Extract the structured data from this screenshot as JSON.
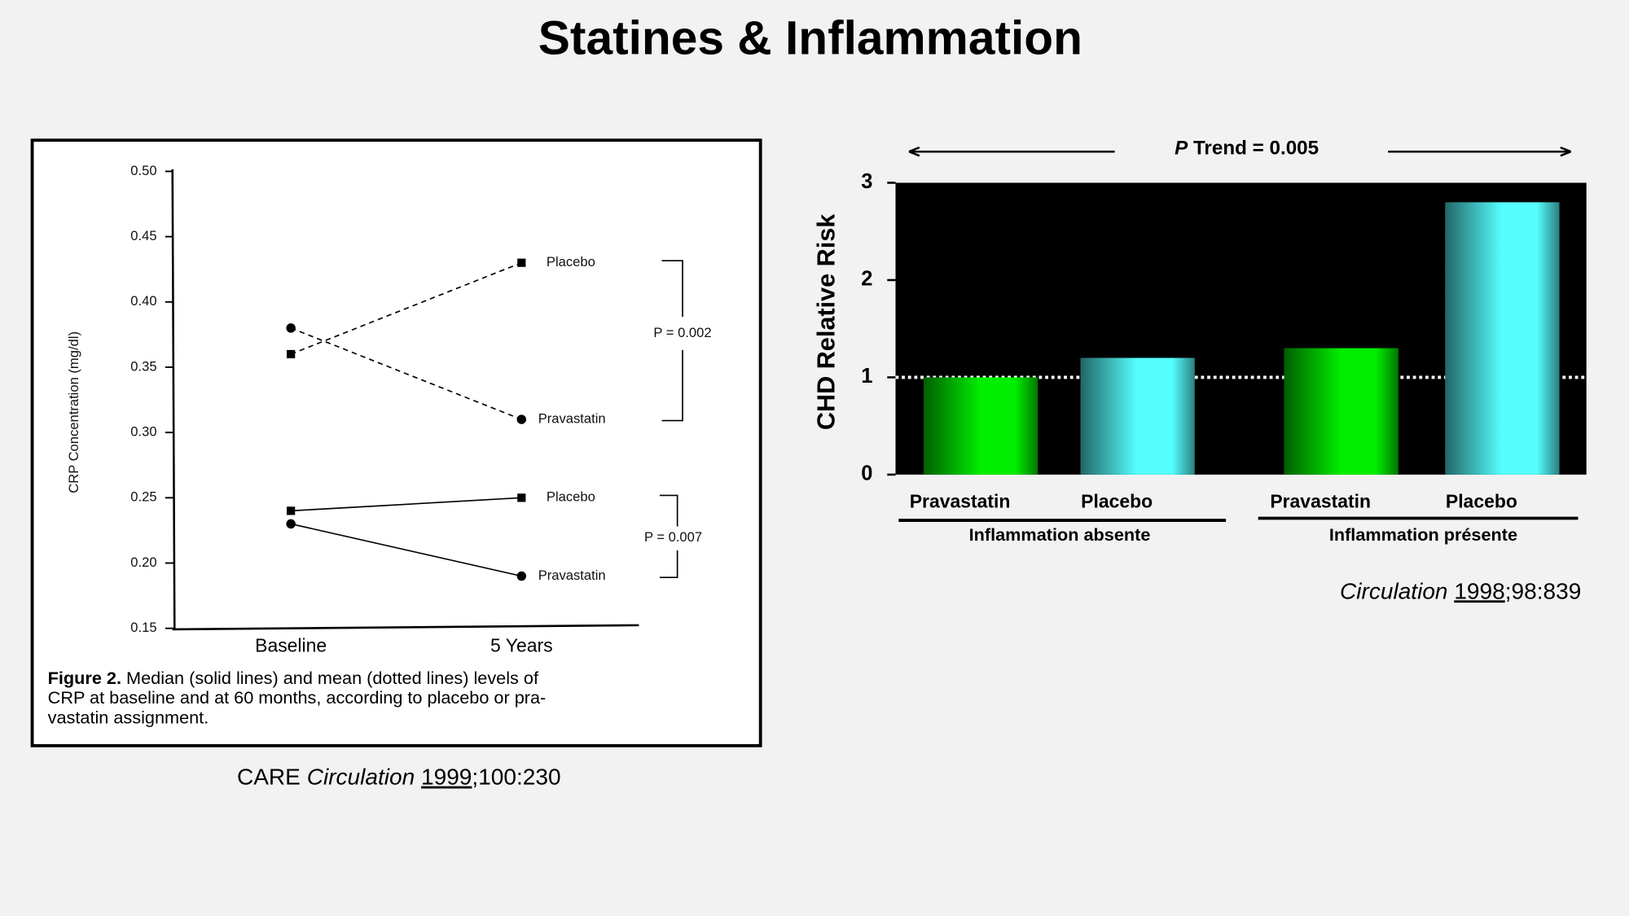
{
  "slide": {
    "title": "Statines & Inflammation"
  },
  "chart_data": [
    {
      "type": "line",
      "ylabel": "CRP Concentration (mg/dl)",
      "categories": [
        "Baseline",
        "5 Years"
      ],
      "ylim": [
        0.15,
        0.5
      ],
      "yticks": [
        0.15,
        {
          "value": 0.2,
          "label": "0.20"
        },
        0.25,
        {
          "value": 0.3,
          "label": "0.30"
        },
        {
          "value": 0.35,
          "label": "0.35"
        },
        {
          "value": 0.4,
          "label": "0.40"
        },
        0.45,
        {
          "value": 0.5,
          "label": "0.50"
        }
      ],
      "series": [
        {
          "name": "Placebo",
          "values": [
            0.36,
            0.43
          ],
          "line_style": "dashed",
          "marker": "square",
          "color": "#000000"
        },
        {
          "name": "Pravastatin",
          "values": [
            0.38,
            0.31
          ],
          "line_style": "dashed",
          "marker": "circle",
          "color": "#000000"
        },
        {
          "name": "Placebo",
          "values": [
            0.24,
            0.25
          ],
          "line_style": "solid",
          "marker": "square",
          "color": "#000000"
        },
        {
          "name": "Pravastatin",
          "values": [
            0.23,
            0.19
          ],
          "line_style": "solid",
          "marker": "circle",
          "color": "#000000"
        }
      ],
      "annotations": [
        "P = 0.002",
        "P = 0.007"
      ],
      "caption": {
        "label": "Figure 2.",
        "lines": [
          "Median (solid lines) and mean (dotted lines) levels of",
          "CRP at baseline and at 60 months, according to placebo or pra-",
          "vastatin assignment."
        ]
      },
      "citation": [
        "CARE",
        "Circulation",
        "1999",
        ";100:230"
      ]
    },
    {
      "type": "bar",
      "annotation": {
        "italic": "P",
        "text": "Trend = 0.005"
      },
      "ylabel": "CHD Relative Risk",
      "categories": [
        "Pravastatin",
        "Placebo",
        "Pravastatin",
        "Placebo"
      ],
      "groups": [
        "Inflammation absente",
        "Inflammation présente"
      ],
      "values": [
        1.0,
        1.2,
        1.3,
        2.8
      ],
      "colors": [
        "#00ee00",
        "#55ffff",
        "#00ee00",
        "#55ffff"
      ],
      "ylim": [
        0,
        3
      ],
      "yticks": [
        0,
        1,
        2,
        3
      ],
      "reference_line": 1,
      "citation": [
        "Circulation",
        "1998",
        ";98:839"
      ]
    }
  ]
}
